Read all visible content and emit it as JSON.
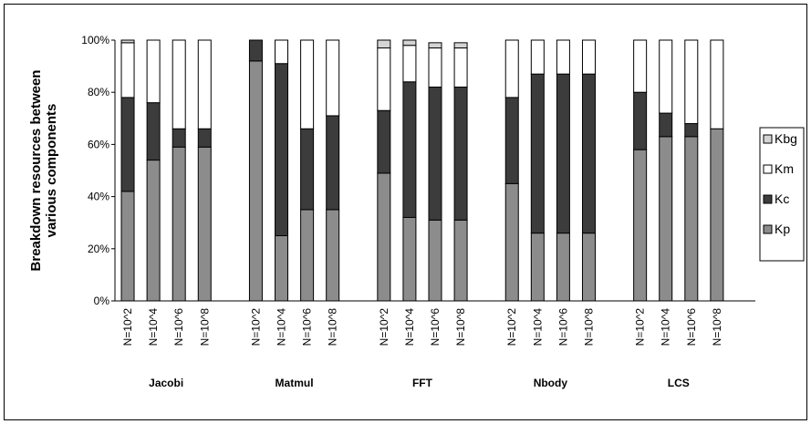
{
  "chart_data": {
    "type": "bar",
    "stacked": true,
    "ylabel": [
      "Breakdown resources between",
      "various components"
    ],
    "yticks": [
      "0%",
      "20%",
      "40%",
      "60%",
      "80%",
      "100%"
    ],
    "ylim": [
      0,
      100
    ],
    "grid": false,
    "legend_position": "right",
    "groups": [
      "Jacobi",
      "Matmul",
      "FFT",
      "Nbody",
      "LCS"
    ],
    "x_labels": [
      "N=10^2",
      "N=10^4",
      "N=10^6",
      "N=10^8"
    ],
    "series": [
      {
        "name": "Kp",
        "color": "#8c8c8c",
        "values": [
          [
            42,
            54,
            59,
            59
          ],
          [
            92,
            25,
            35,
            35
          ],
          [
            49,
            32,
            31,
            31
          ],
          [
            45,
            26,
            26,
            26
          ],
          [
            58,
            63,
            63,
            66
          ]
        ]
      },
      {
        "name": "Kc",
        "color": "#3c3c3c",
        "values": [
          [
            36,
            22,
            7,
            7
          ],
          [
            8,
            66,
            31,
            36
          ],
          [
            24,
            52,
            51,
            51
          ],
          [
            33,
            61,
            61,
            61
          ],
          [
            22,
            9,
            5,
            0
          ]
        ]
      },
      {
        "name": "Km",
        "color": "#ffffff",
        "values": [
          [
            21,
            24,
            34,
            34
          ],
          [
            0,
            9,
            34,
            29
          ],
          [
            24,
            14,
            15,
            15
          ],
          [
            22,
            13,
            13,
            13
          ],
          [
            20,
            28,
            32,
            34
          ]
        ]
      },
      {
        "name": "Kbg",
        "color": "#d4d4d4",
        "values": [
          [
            1,
            0,
            0,
            0
          ],
          [
            0,
            0,
            0,
            0
          ],
          [
            3,
            2,
            2,
            2
          ],
          [
            0,
            0,
            0,
            0
          ],
          [
            0,
            0,
            0,
            0
          ]
        ]
      }
    ],
    "legend_order": [
      "Kbg",
      "Km",
      "Kc",
      "Kp"
    ]
  }
}
